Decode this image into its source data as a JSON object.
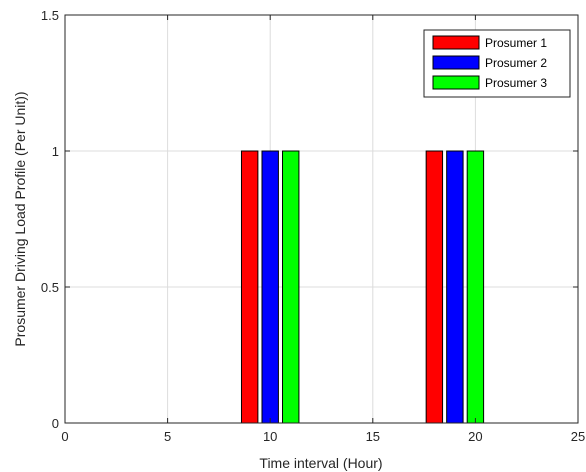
{
  "chart_data": {
    "type": "bar",
    "title": "",
    "xlabel": "Time interval (Hour)",
    "ylabel": "Prosumer Driving Load Profile (Per Unit))",
    "xlim": [
      0,
      25
    ],
    "ylim": [
      0,
      1.5
    ],
    "xticks": [
      "0",
      "5",
      "10",
      "15",
      "20",
      "25"
    ],
    "yticks": [
      "0",
      "0.5",
      "1",
      "1.5"
    ],
    "grid": true,
    "legend_position": "top-right",
    "series": [
      {
        "name": "Prosumer 1",
        "color": "#ff0000",
        "x": [
          9,
          18
        ],
        "values": [
          1,
          1
        ]
      },
      {
        "name": "Prosumer 2",
        "color": "#0000ff",
        "x": [
          10,
          19
        ],
        "values": [
          1,
          1
        ]
      },
      {
        "name": "Prosumer 3",
        "color": "#00ff00",
        "x": [
          11,
          20
        ],
        "values": [
          1,
          1
        ]
      }
    ]
  }
}
